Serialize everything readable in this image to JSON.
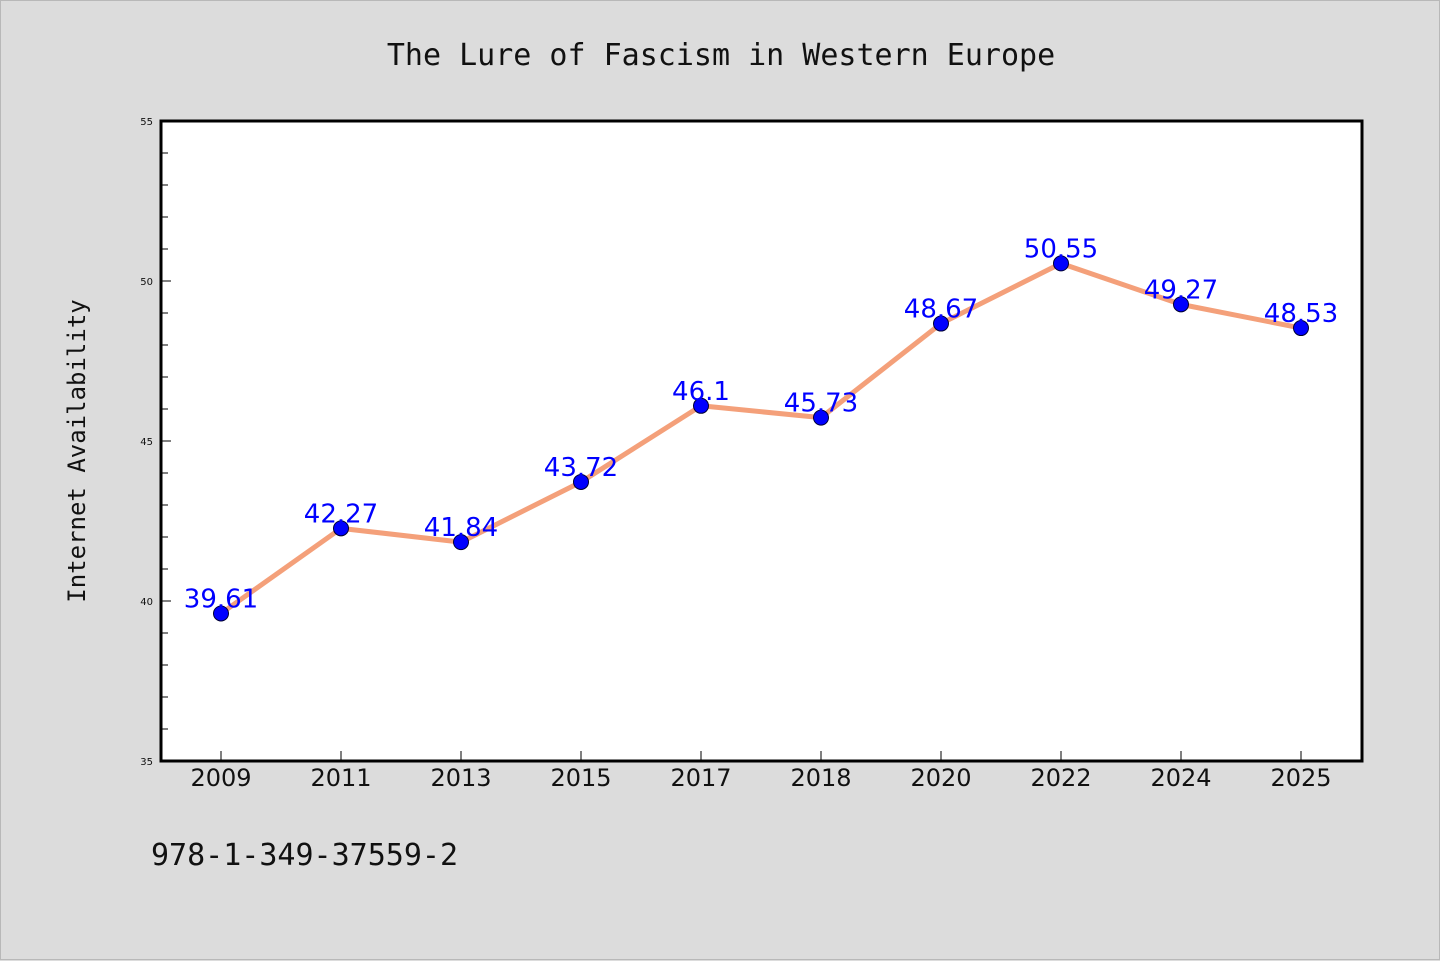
{
  "chart_data": {
    "type": "line",
    "title": "The Lure of Fascism in Western Europe",
    "xlabel": "",
    "ylabel": "Internet Availability",
    "categories": [
      "2009",
      "2011",
      "2013",
      "2015",
      "2017",
      "2018",
      "2020",
      "2022",
      "2024",
      "2025"
    ],
    "series": [
      {
        "values": [
          39.61,
          42.27,
          41.84,
          43.72,
          46.1,
          45.73,
          48.67,
          50.55,
          49.27,
          48.53
        ],
        "labels": [
          "39.61",
          "42.27",
          "41.84",
          "43.72",
          "46.1",
          "45.73",
          "48.67",
          "50.55",
          "49.27",
          "48.53"
        ]
      }
    ],
    "ylim": [
      35,
      55
    ],
    "yticks": [
      "35",
      "40",
      "45",
      "50",
      "55"
    ],
    "grid": false,
    "legend": "none",
    "colors": {
      "line": "#f4a07a",
      "marker": "#0000ff",
      "label": "#0000ff",
      "plot_background": "#ffffff",
      "figure_background": "#dcdcdc"
    }
  },
  "footer": {
    "isbn": "978-1-349-37559-2"
  }
}
